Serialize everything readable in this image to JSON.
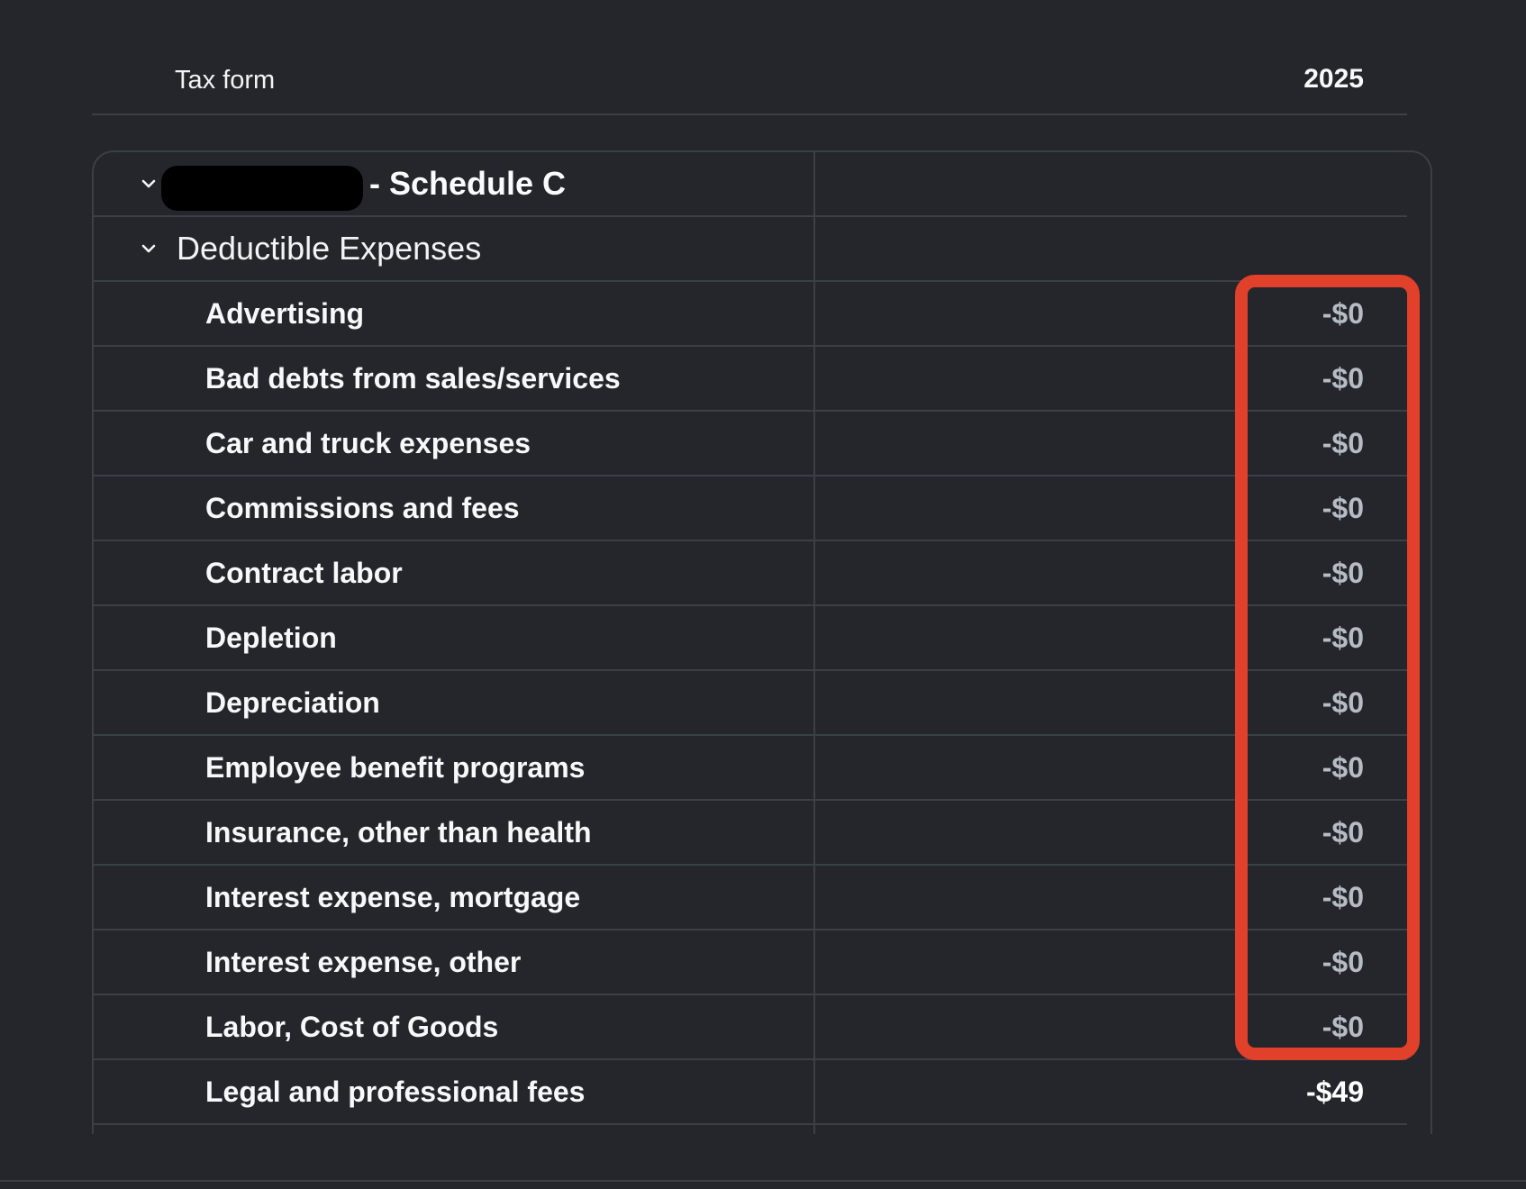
{
  "header": {
    "tax_form_label": "Tax form",
    "year_label": "2025"
  },
  "schedule": {
    "name_redacted": true,
    "title_suffix": "- Schedule C"
  },
  "section": {
    "label": "Deductible Expenses"
  },
  "rows": [
    {
      "label": "Advertising",
      "value": "-$0"
    },
    {
      "label": "Bad debts from sales/services",
      "value": "-$0"
    },
    {
      "label": "Car and truck expenses",
      "value": "-$0"
    },
    {
      "label": "Commissions and fees",
      "value": "-$0"
    },
    {
      "label": "Contract labor",
      "value": "-$0"
    },
    {
      "label": "Depletion",
      "value": "-$0"
    },
    {
      "label": "Depreciation",
      "value": "-$0"
    },
    {
      "label": "Employee benefit programs",
      "value": "-$0"
    },
    {
      "label": "Insurance, other than health",
      "value": "-$0"
    },
    {
      "label": "Interest expense, mortgage",
      "value": "-$0"
    },
    {
      "label": "Interest expense, other",
      "value": "-$0"
    },
    {
      "label": "Labor, Cost of Goods",
      "value": "-$0"
    },
    {
      "label": "Legal and professional fees",
      "value": "-$49"
    }
  ],
  "colors": {
    "background": "#24262b",
    "divider": "#3b3f46",
    "highlight_border": "#e1402a",
    "muted_value": "#b7bcc4"
  }
}
